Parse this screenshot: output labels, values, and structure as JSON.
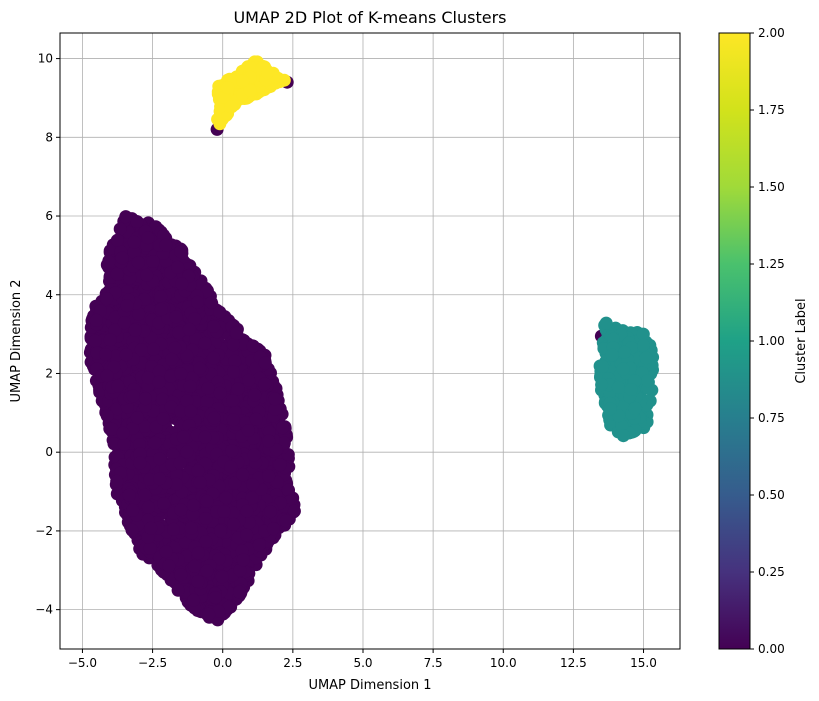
{
  "chart_data": {
    "type": "scatter",
    "title": "UMAP 2D Plot of K-means Clusters",
    "xlabel": "UMAP Dimension 1",
    "ylabel": "UMAP Dimension 2",
    "xlim": [
      -5.8,
      16.3
    ],
    "ylim": [
      -5.0,
      10.65
    ],
    "x_ticks": [
      -5.0,
      -2.5,
      0.0,
      2.5,
      5.0,
      7.5,
      10.0,
      12.5,
      15.0
    ],
    "x_tick_labels": [
      "−5.0",
      "−2.5",
      "0.0",
      "2.5",
      "5.0",
      "7.5",
      "10.0",
      "12.5",
      "15.0"
    ],
    "y_ticks": [
      -4,
      -2,
      0,
      2,
      4,
      6,
      8,
      10
    ],
    "y_tick_labels": [
      "−4",
      "−2",
      "0",
      "2",
      "4",
      "6",
      "8",
      "10"
    ],
    "grid": true,
    "colormap": "viridis",
    "colorbar": {
      "label": "Cluster Label",
      "range": [
        0.0,
        2.0
      ],
      "ticks": [
        0.0,
        0.25,
        0.5,
        0.75,
        1.0,
        1.25,
        1.5,
        1.75,
        2.0
      ],
      "tick_labels": [
        "0.00",
        "0.25",
        "0.50",
        "0.75",
        "1.00",
        "1.25",
        "1.50",
        "1.75",
        "2.00"
      ]
    },
    "series": [
      {
        "cluster": 0,
        "color": "#440154",
        "hull": [
          [
            -3.5,
            6.0
          ],
          [
            -2.5,
            5.8
          ],
          [
            -1.5,
            5.2
          ],
          [
            0.0,
            3.5
          ],
          [
            1.5,
            2.5
          ],
          [
            2.2,
            1.0
          ],
          [
            2.4,
            -0.5
          ],
          [
            2.6,
            -1.5
          ],
          [
            1.5,
            -2.5
          ],
          [
            0.5,
            -3.8
          ],
          [
            -0.2,
            -4.3
          ],
          [
            -1.0,
            -4.0
          ],
          [
            -2.0,
            -3.2
          ],
          [
            -3.0,
            -2.5
          ],
          [
            -3.8,
            -1.0
          ],
          [
            -4.0,
            0.5
          ],
          [
            -4.8,
            2.5
          ],
          [
            -4.6,
            3.7
          ],
          [
            -4.0,
            4.2
          ],
          [
            -4.2,
            4.8
          ]
        ],
        "extra_points": [
          [
            -0.2,
            8.2
          ],
          [
            2.3,
            9.4
          ],
          [
            13.5,
            2.95
          ]
        ]
      },
      {
        "cluster": 1,
        "color": "#21918c",
        "hull": [
          [
            13.6,
            3.3
          ],
          [
            14.5,
            3.1
          ],
          [
            15.1,
            3.0
          ],
          [
            15.4,
            2.5
          ],
          [
            15.3,
            1.5
          ],
          [
            15.1,
            0.6
          ],
          [
            14.2,
            0.4
          ],
          [
            13.8,
            0.7
          ],
          [
            13.5,
            1.5
          ],
          [
            13.4,
            2.3
          ]
        ]
      },
      {
        "cluster": 2,
        "color": "#fde725",
        "hull": [
          [
            -0.2,
            9.3
          ],
          [
            0.5,
            9.6
          ],
          [
            1.2,
            9.95
          ],
          [
            2.2,
            9.45
          ],
          [
            1.2,
            9.1
          ],
          [
            0.4,
            8.8
          ],
          [
            0.0,
            8.4
          ],
          [
            -0.3,
            8.2
          ],
          [
            -0.1,
            8.7
          ]
        ]
      }
    ]
  }
}
